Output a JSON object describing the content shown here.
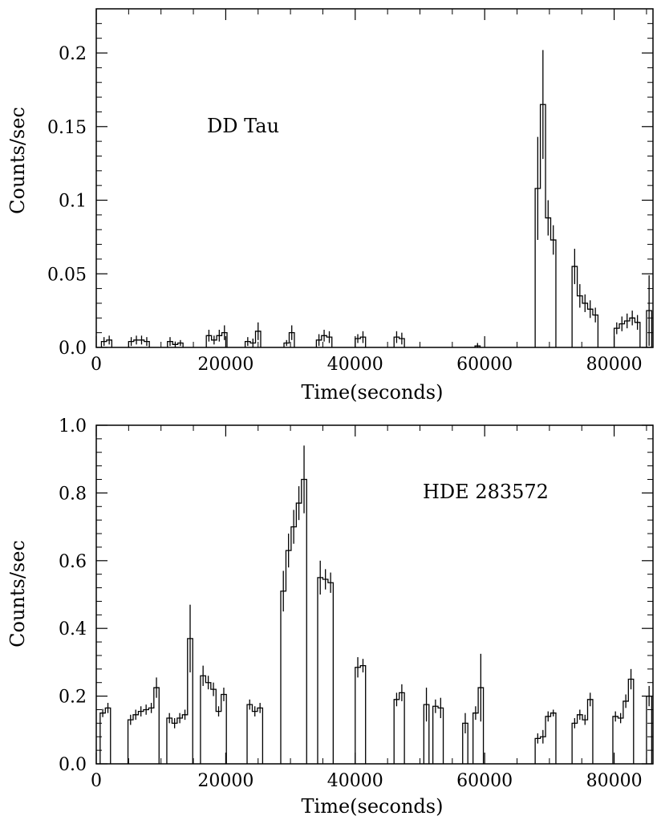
{
  "chart_data": [
    {
      "type": "step",
      "annotation": "DD Tau",
      "xlabel": "Time(seconds)",
      "ylabel": "Counts/sec",
      "xlim": [
        0,
        86000
      ],
      "ylim": [
        0,
        0.23
      ],
      "xticks": [
        0,
        20000,
        40000,
        60000,
        80000
      ],
      "xtick_labels": [
        "0",
        "20000",
        "40000",
        "60000",
        "80000"
      ],
      "yticks": [
        0,
        0.05,
        0.1,
        0.15,
        0.2
      ],
      "ytick_labels": [
        "0.0",
        "0.05",
        "0.1",
        "0.15",
        "0.2"
      ],
      "bin_width": 800,
      "segments": [
        {
          "start": 800,
          "values": [
            0.004,
            0.005
          ],
          "errors": [
            0.003,
            0.003
          ]
        },
        {
          "start": 5000,
          "values": [
            0.004,
            0.005,
            0.005,
            0.004
          ],
          "errors": [
            0.003,
            0.003,
            0.003,
            0.003
          ]
        },
        {
          "start": 11000,
          "values": [
            0.004,
            0.002,
            0.003
          ],
          "errors": [
            0.003,
            0.002,
            0.002
          ]
        },
        {
          "start": 17000,
          "values": [
            0.008,
            0.005,
            0.008,
            0.01
          ],
          "errors": [
            0.004,
            0.003,
            0.004,
            0.005
          ]
        },
        {
          "start": 23000,
          "values": [
            0.004,
            0.003,
            0.011
          ],
          "errors": [
            0.003,
            0.003,
            0.006
          ]
        },
        {
          "start": 29000,
          "values": [
            0.003,
            0.01
          ],
          "errors": [
            0.002,
            0.005
          ]
        },
        {
          "start": 34000,
          "values": [
            0.005,
            0.008,
            0.007
          ],
          "errors": [
            0.004,
            0.004,
            0.004
          ]
        },
        {
          "start": 40000,
          "values": [
            0.006,
            0.007
          ],
          "errors": [
            0.003,
            0.004
          ]
        },
        {
          "start": 46000,
          "values": [
            0.007,
            0.006
          ],
          "errors": [
            0.004,
            0.004
          ]
        },
        {
          "start": 58500,
          "values": [
            0.001
          ],
          "errors": [
            0.002
          ]
        },
        {
          "start": 67800,
          "values": [
            0.108,
            0.165,
            0.088,
            0.073
          ],
          "errors": [
            0.035,
            0.037,
            0.012,
            0.01
          ]
        },
        {
          "start": 73500,
          "values": [
            0.055,
            0.035,
            0.03,
            0.026,
            0.022
          ],
          "errors": [
            0.012,
            0.008,
            0.006,
            0.006,
            0.005
          ]
        },
        {
          "start": 80000,
          "values": [
            0.013,
            0.016,
            0.018,
            0.02,
            0.017
          ],
          "errors": [
            0.004,
            0.005,
            0.005,
            0.005,
            0.005
          ]
        },
        {
          "start": 85000,
          "values": [
            0.025
          ],
          "errors": [
            0.024
          ]
        }
      ]
    },
    {
      "type": "step",
      "annotation": "HDE 283572",
      "xlabel": "Time(seconds)",
      "ylabel": "Counts/sec",
      "xlim": [
        0,
        86000
      ],
      "ylim": [
        0,
        1.0
      ],
      "xticks": [
        0,
        20000,
        40000,
        60000,
        80000
      ],
      "xtick_labels": [
        "0",
        "20000",
        "40000",
        "60000",
        "80000"
      ],
      "yticks": [
        0,
        0.2,
        0.4,
        0.6,
        0.8,
        1.0
      ],
      "ytick_labels": [
        "0.0",
        "0.2",
        "0.4",
        "0.6",
        "0.8",
        "1.0"
      ],
      "bin_width": 800,
      "segments": [
        {
          "start": 600,
          "values": [
            0.15,
            0.165
          ],
          "errors": [
            0.012,
            0.015
          ]
        },
        {
          "start": 4900,
          "values": [
            0.13,
            0.145,
            0.155,
            0.16,
            0.165,
            0.225
          ],
          "errors": [
            0.015,
            0.015,
            0.015,
            0.015,
            0.015,
            0.03
          ]
        },
        {
          "start": 10900,
          "values": [
            0.135,
            0.12,
            0.135,
            0.145,
            0.37
          ],
          "errors": [
            0.015,
            0.015,
            0.015,
            0.015,
            0.1
          ]
        },
        {
          "start": 16100,
          "values": [
            0.26,
            0.24,
            0.22,
            0.155,
            0.205
          ],
          "errors": [
            0.03,
            0.02,
            0.02,
            0.015,
            0.02
          ]
        },
        {
          "start": 23300,
          "values": [
            0.175,
            0.155,
            0.165
          ],
          "errors": [
            0.015,
            0.015,
            0.015
          ]
        },
        {
          "start": 28500,
          "values": [
            0.51,
            0.63,
            0.7,
            0.77,
            0.84
          ],
          "errors": [
            0.06,
            0.05,
            0.05,
            0.05,
            0.1
          ]
        },
        {
          "start": 34200,
          "values": [
            0.55,
            0.545,
            0.535
          ],
          "errors": [
            0.05,
            0.03,
            0.03
          ]
        },
        {
          "start": 40000,
          "values": [
            0.285,
            0.29
          ],
          "errors": [
            0.03,
            0.02
          ]
        },
        {
          "start": 46000,
          "values": [
            0.19,
            0.21
          ],
          "errors": [
            0.02,
            0.025
          ]
        },
        {
          "start": 50600,
          "values": [
            0.175
          ],
          "errors": [
            0.05
          ]
        },
        {
          "start": 52000,
          "values": [
            0.17,
            0.165
          ],
          "errors": [
            0.02,
            0.03
          ]
        },
        {
          "start": 56600,
          "values": [
            0.12
          ],
          "errors": [
            0.03
          ]
        },
        {
          "start": 58200,
          "values": [
            0.15,
            0.225
          ],
          "errors": [
            0.02,
            0.1
          ]
        },
        {
          "start": 67800,
          "values": [
            0.075,
            0.08,
            0.14,
            0.15
          ],
          "errors": [
            0.015,
            0.02,
            0.015,
            0.01
          ]
        },
        {
          "start": 73500,
          "values": [
            0.12,
            0.145,
            0.13,
            0.19
          ],
          "errors": [
            0.015,
            0.015,
            0.015,
            0.02
          ]
        },
        {
          "start": 79800,
          "values": [
            0.14,
            0.135,
            0.185,
            0.25
          ],
          "errors": [
            0.015,
            0.015,
            0.02,
            0.03
          ]
        },
        {
          "start": 85000,
          "values": [
            0.2
          ],
          "errors": [
            0.03
          ]
        }
      ]
    }
  ]
}
